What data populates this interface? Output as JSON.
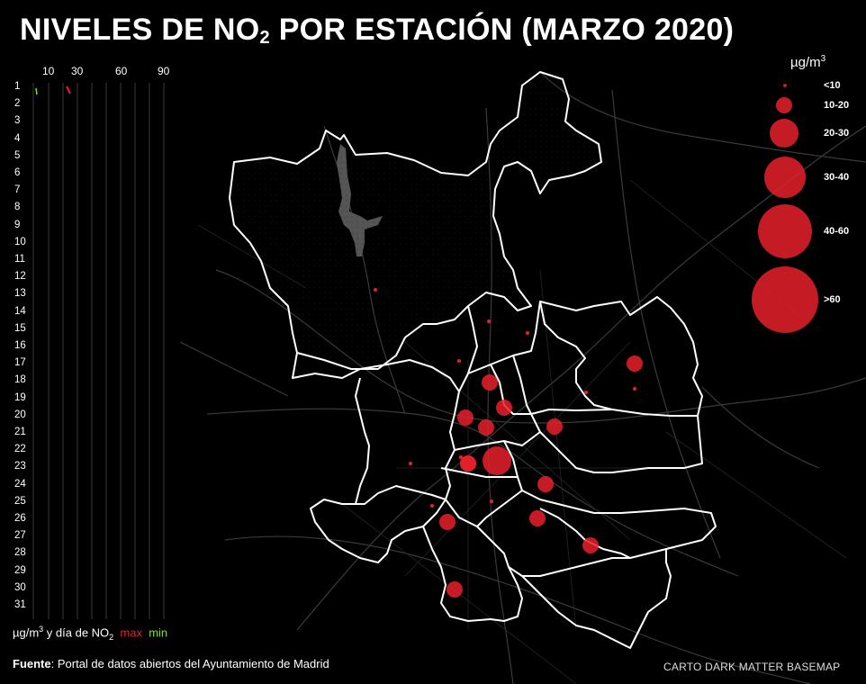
{
  "title": {
    "main": "NIVELES DE NO",
    "sub": "2",
    "rest": " POR ESTACIÓN (MARZO 2020)"
  },
  "axis": {
    "ticks": [
      "10",
      "30",
      "60",
      "90"
    ]
  },
  "days": [
    "1",
    "2",
    "3",
    "4",
    "5",
    "6",
    "7",
    "8",
    "9",
    "10",
    "11",
    "12",
    "13",
    "14",
    "15",
    "16",
    "17",
    "18",
    "19",
    "20",
    "21",
    "22",
    "23",
    "24",
    "25",
    "26",
    "27",
    "28",
    "29",
    "30",
    "31"
  ],
  "legend": {
    "unit": "µg/m",
    "unit_sup": "3",
    "classes": [
      "<10",
      "10-20",
      "20-30",
      "30-40",
      "40-60",
      ">60"
    ]
  },
  "key": {
    "text": "µg/m",
    "sup": "3",
    "mid": " y día de NO",
    "sub": "2",
    "max": "max",
    "min": "min"
  },
  "source": {
    "label": "Fuente",
    "text": ": Portal de datos abiertos del Ayuntamiento de Madrid"
  },
  "basemap": "CARTO DARK MATTER BASEMAP",
  "colors": {
    "bubble": "#e8202a",
    "max": "#e8202a",
    "min": "#88dd33",
    "boundary": "#ffffff",
    "background": "#000000"
  },
  "stations": [
    {
      "class": "<10"
    },
    {
      "class": "<10"
    },
    {
      "class": "<10"
    },
    {
      "class": "<10"
    },
    {
      "class": "<10"
    },
    {
      "class": "<10"
    },
    {
      "class": "<10"
    },
    {
      "class": "<10"
    },
    {
      "class": "<10"
    },
    {
      "class": "<10"
    },
    {
      "class": "10-20"
    },
    {
      "class": "10-20"
    },
    {
      "class": "10-20"
    },
    {
      "class": "10-20"
    },
    {
      "class": "10-20"
    },
    {
      "class": "10-20"
    },
    {
      "class": "10-20"
    },
    {
      "class": "10-20"
    },
    {
      "class": "10-20"
    },
    {
      "class": "10-20"
    },
    {
      "class": "10-20"
    },
    {
      "class": "10-20"
    },
    {
      "class": "10-20"
    },
    {
      "class": "20-30"
    }
  ]
}
